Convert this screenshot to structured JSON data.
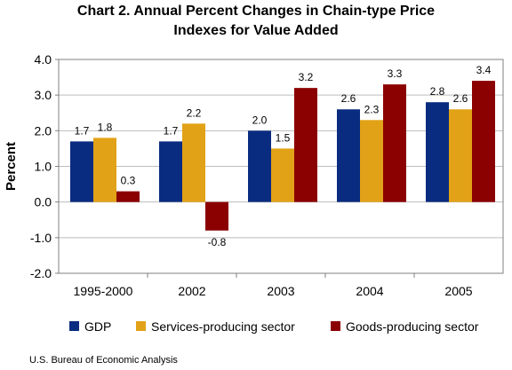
{
  "title_line1": "Chart 2. Annual Percent Changes in Chain-type Price",
  "title_line2": "Indexes for Value Added",
  "source": "U.S. Bureau of Economic Analysis",
  "chart_data": {
    "type": "bar",
    "title": "Chart 2. Annual Percent Changes in Chain-type Price Indexes for Value Added",
    "xlabel": "",
    "ylabel": "Percent",
    "ylim": [
      -2.0,
      4.0
    ],
    "yticks": [
      "4.0",
      "3.0",
      "2.0",
      "1.0",
      "0.0",
      "-1.0",
      "-2.0"
    ],
    "ytick_values": [
      4.0,
      3.0,
      2.0,
      1.0,
      0.0,
      -1.0,
      -2.0
    ],
    "categories": [
      "1995-2000",
      "2002",
      "2003",
      "2004",
      "2005"
    ],
    "grid": true,
    "legend_position": "bottom",
    "series": [
      {
        "name": "GDP",
        "color": "#0a2c80",
        "values": [
          1.7,
          1.7,
          2.0,
          2.6,
          2.8
        ],
        "labels": [
          "1.7",
          "1.7",
          "2.0",
          "2.6",
          "2.8"
        ]
      },
      {
        "name": "Services-producing sector",
        "color": "#e2a217",
        "values": [
          1.8,
          2.2,
          1.5,
          2.3,
          2.6
        ],
        "labels": [
          "1.8",
          "2.2",
          "1.5",
          "2.3",
          "2.6"
        ]
      },
      {
        "name": "Goods-producing sector",
        "color": "#8b0000",
        "values": [
          0.3,
          -0.8,
          3.2,
          3.3,
          3.4
        ],
        "labels": [
          "0.3",
          "-0.8",
          "3.2",
          "3.3",
          "3.4"
        ]
      }
    ]
  }
}
